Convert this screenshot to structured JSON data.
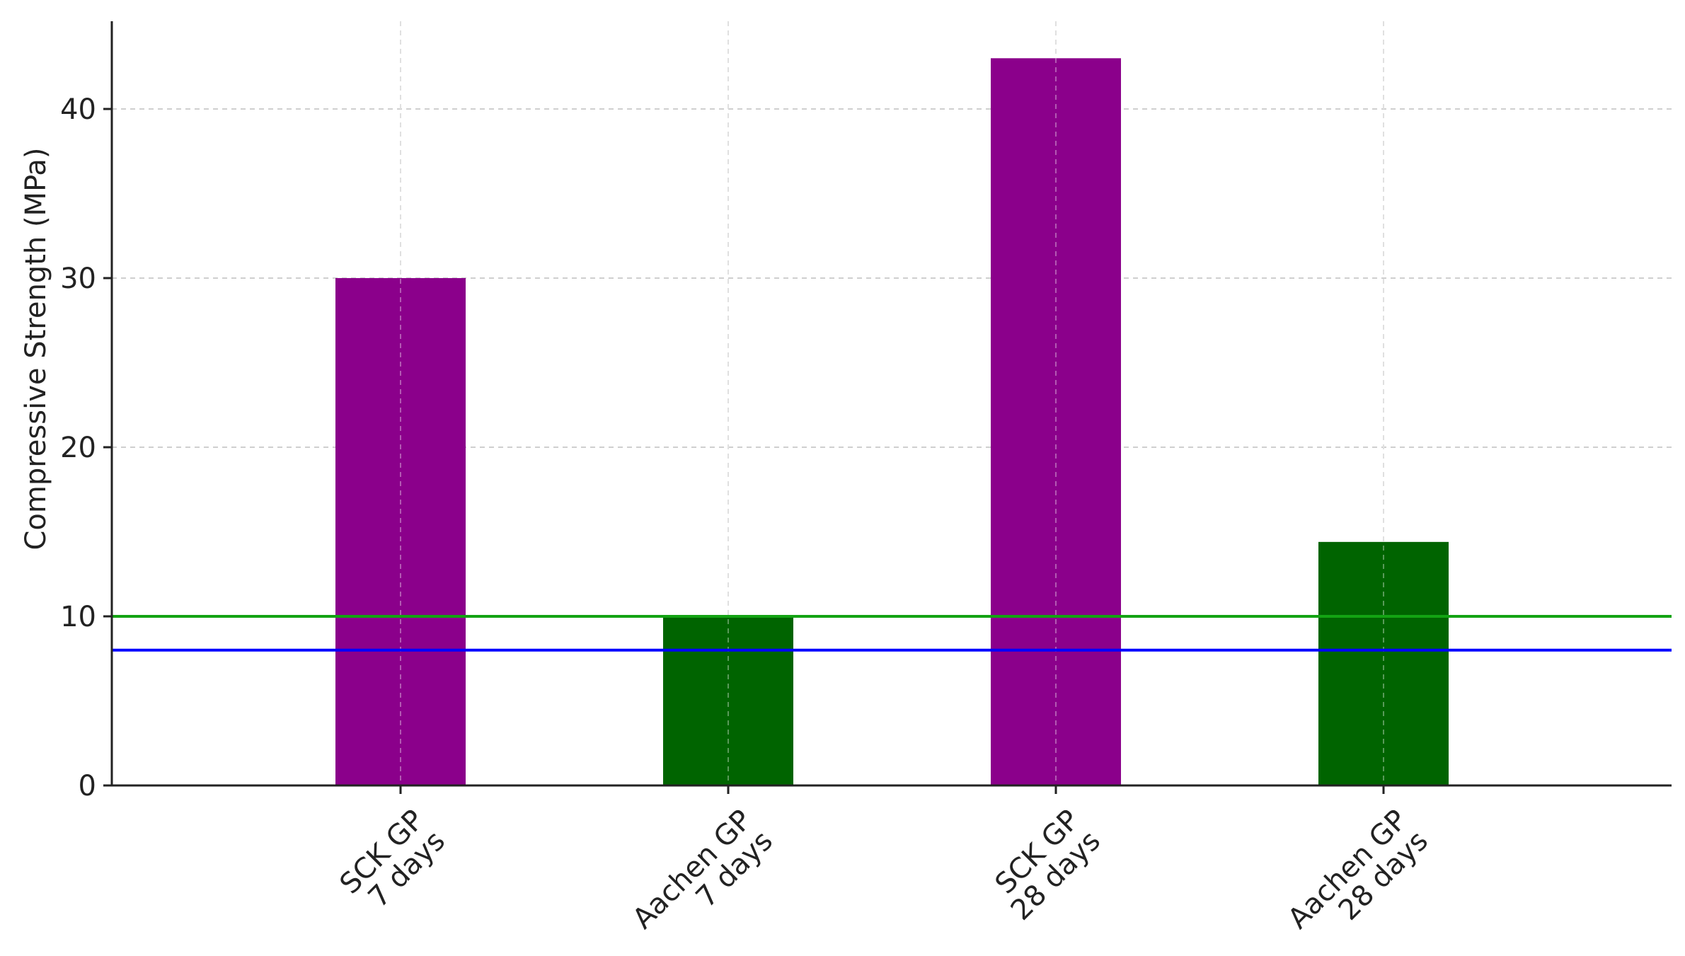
{
  "chart_data": {
    "type": "bar",
    "title": "",
    "xlabel": "",
    "ylabel": "Compressive Strength (MPa)",
    "ylim": [
      0,
      45
    ],
    "yticks": [
      0,
      10,
      20,
      30,
      40
    ],
    "grid": true,
    "categories": [
      [
        "SCK GP",
        "7 days"
      ],
      [
        "Aachen GP",
        "7 days"
      ],
      [
        "SCK GP",
        "28 days"
      ],
      [
        "Aachen GP",
        "28 days"
      ]
    ],
    "values": [
      30,
      10,
      43,
      14.4
    ],
    "bar_colors": [
      "#8b008b",
      "#006400",
      "#8b008b",
      "#006400"
    ],
    "reference_lines": [
      {
        "value": 10,
        "color": "#13a313"
      },
      {
        "value": 8,
        "color": "#0000ff"
      }
    ],
    "legend": "none"
  }
}
